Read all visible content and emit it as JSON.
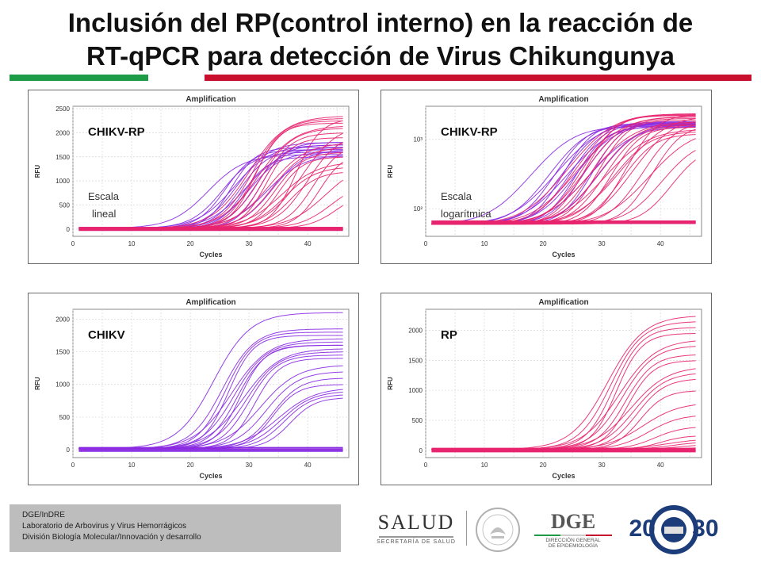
{
  "slide": {
    "title_line1": "Inclusión del RP(control interno) en la reacción de",
    "title_line2": "RT-qPCR para detección de Virus Chikungunya"
  },
  "colors": {
    "green": "#1e9b45",
    "red": "#c8102e",
    "purple": "#8a2be2",
    "pink": "#e8246f"
  },
  "footer": {
    "line1": "DGE/InDRE",
    "line2": "Laboratorio de Arbovirus y Virus Hemorrágicos",
    "line3": "División Biología Molecular/Innovación y desarrollo"
  },
  "logos": {
    "salud": "SALUD",
    "salud_sub": "SECRETARÍA DE SALUD",
    "dge": "DGE",
    "dge_sub1": "DIRECCIÓN GENERAL",
    "dge_sub2": "DE EPIDEMIOLOGÍA",
    "sinave": "20 30"
  },
  "chart_data": [
    {
      "type": "line",
      "title": "Amplification",
      "xlabel": "Cycles",
      "ylabel": "RFU",
      "xlim": [
        0,
        47
      ],
      "ylim": [
        -150,
        2550
      ],
      "yscale": "linear",
      "xticks": [
        0,
        10,
        20,
        30,
        40
      ],
      "yticks": [
        0,
        500,
        1000,
        1500,
        2000,
        2500
      ],
      "annotation": "CHIKV-RP",
      "note_line1": "Escala",
      "note_line2": "lineal",
      "series": [
        {
          "color": "#8a2be2",
          "plateaus": [
            1550,
            1600,
            1650,
            1700,
            1750,
            1800,
            1650,
            1500,
            1700,
            1600,
            1750,
            1800,
            1550,
            1650
          ],
          "ct": [
            19,
            21.5,
            22,
            23,
            23.5,
            24,
            24.5,
            25,
            25.5,
            26,
            27,
            28,
            29,
            30
          ]
        },
        {
          "color": "#e8246f",
          "plateaus": [
            2350,
            2300,
            2250,
            2200,
            2150,
            2100,
            2000,
            1900,
            1800,
            1700,
            1600,
            1500,
            1400,
            1300,
            1200,
            2300,
            2200,
            2000,
            1800,
            1600,
            1400,
            1000,
            800
          ],
          "ct": [
            26,
            26.5,
            27,
            27,
            27.5,
            28,
            28.5,
            29,
            29.5,
            30,
            30.5,
            31,
            31.5,
            32,
            33,
            34,
            35,
            36,
            37,
            38,
            39,
            40,
            41
          ]
        }
      ]
    },
    {
      "type": "line",
      "title": "Amplification",
      "xlabel": "Cycles",
      "ylabel": "RFU",
      "xlim": [
        0,
        47
      ],
      "ylim": [
        40,
        3000
      ],
      "yscale": "log",
      "xticks": [
        0,
        10,
        20,
        30,
        40
      ],
      "yticks": [
        100,
        1000
      ],
      "yticklabels": [
        "10²",
        "10³"
      ],
      "annotation": "CHIKV-RP",
      "note_line1": "Escala",
      "note_line2": "logarítmica",
      "series": [
        {
          "color": "#8a2be2",
          "plateaus": [
            1550,
            1600,
            1650,
            1700,
            1750,
            1800,
            1650,
            1500,
            1700,
            1600,
            1750,
            1800,
            1550,
            1650
          ],
          "ct": [
            19,
            21.5,
            22,
            23,
            23.5,
            24,
            24.5,
            25,
            25.5,
            26,
            27,
            28,
            29,
            30
          ]
        },
        {
          "color": "#e8246f",
          "plateaus": [
            2350,
            2300,
            2250,
            2200,
            2150,
            2100,
            2000,
            1900,
            1800,
            1700,
            1600,
            1500,
            1400,
            1300,
            1200,
            2300,
            2200,
            2000,
            1800,
            1600,
            1400,
            1000,
            800
          ],
          "ct": [
            26,
            26.5,
            27,
            27,
            27.5,
            28,
            28.5,
            29,
            29.5,
            30,
            30.5,
            31,
            31.5,
            32,
            33,
            34,
            35,
            36,
            37,
            38,
            39,
            40,
            41
          ]
        }
      ]
    },
    {
      "type": "line",
      "title": "Amplification",
      "xlabel": "Cycles",
      "ylabel": "RFU",
      "xlim": [
        0,
        47
      ],
      "ylim": [
        -120,
        2150
      ],
      "yscale": "linear",
      "xticks": [
        0,
        10,
        20,
        30,
        40
      ],
      "yticks": [
        0,
        500,
        1000,
        1500,
        2000
      ],
      "annotation": "CHIKV",
      "series": [
        {
          "color": "#8a2be2",
          "plateaus": [
            2100,
            1850,
            1800,
            1750,
            1700,
            1650,
            1600,
            1600,
            1550,
            1500,
            1450,
            1400,
            1300,
            1200,
            1100,
            1000,
            950,
            900,
            850,
            800
          ],
          "ct": [
            20,
            21.5,
            22,
            22.5,
            23,
            23.5,
            24,
            24.5,
            25,
            25.5,
            26,
            27,
            28,
            29,
            30,
            30,
            31,
            31.5,
            32,
            33
          ]
        }
      ]
    },
    {
      "type": "line",
      "title": "Amplification",
      "xlabel": "Cycles",
      "ylabel": "RFU",
      "xlim": [
        0,
        47
      ],
      "ylim": [
        -120,
        2350
      ],
      "yscale": "linear",
      "xticks": [
        0,
        10,
        20,
        30,
        40
      ],
      "yticks": [
        0,
        500,
        1000,
        1500,
        2000
      ],
      "annotation": "RP",
      "series": [
        {
          "color": "#e8246f",
          "plateaus": [
            2250,
            2150,
            2050,
            1950,
            1850,
            1750,
            1600,
            1500,
            1400,
            1300,
            1200,
            1000,
            800,
            600,
            400,
            250,
            200,
            150,
            100,
            50
          ],
          "ct": [
            27,
            27.5,
            28,
            28.5,
            29,
            29.5,
            30,
            30.5,
            31,
            31.5,
            32,
            32.5,
            33,
            34,
            35,
            36,
            37,
            38,
            39,
            40
          ]
        }
      ]
    }
  ]
}
